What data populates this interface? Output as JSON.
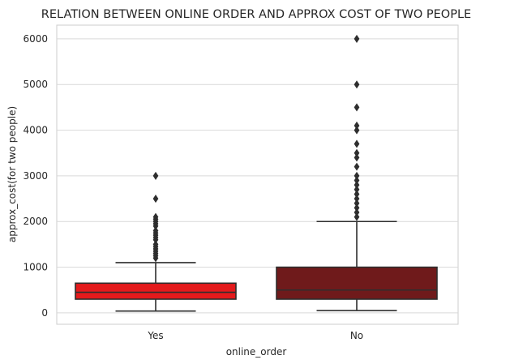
{
  "chart_data": {
    "type": "box",
    "title": "RELATION BETWEEN ONLINE ORDER AND APPROX COST OF TWO PEOPLE",
    "xlabel": "online_order",
    "ylabel": "approx_cost(for two people)",
    "ylim": [
      -250,
      6300
    ],
    "yticks": [
      0,
      1000,
      2000,
      3000,
      4000,
      5000,
      6000
    ],
    "grid": true,
    "categories": [
      "Yes",
      "No"
    ],
    "boxes": [
      {
        "category": "Yes",
        "color": "#e41a1c",
        "whisker_low": 40,
        "q1": 300,
        "median": 450,
        "q3": 650,
        "whisker_high": 1100,
        "outliers": [
          1200,
          1250,
          1300,
          1350,
          1400,
          1450,
          1500,
          1600,
          1650,
          1700,
          1750,
          1800,
          1900,
          1950,
          2000,
          2050,
          2100,
          2500,
          3000
        ]
      },
      {
        "category": "No",
        "color": "#6f1a1b",
        "whisker_low": 50,
        "q1": 300,
        "median": 500,
        "q3": 1000,
        "whisker_high": 2000,
        "outliers": [
          2100,
          2200,
          2300,
          2400,
          2500,
          2600,
          2700,
          2800,
          2900,
          3000,
          3200,
          3400,
          3500,
          3700,
          4000,
          4100,
          4500,
          5000,
          6000
        ]
      }
    ]
  }
}
